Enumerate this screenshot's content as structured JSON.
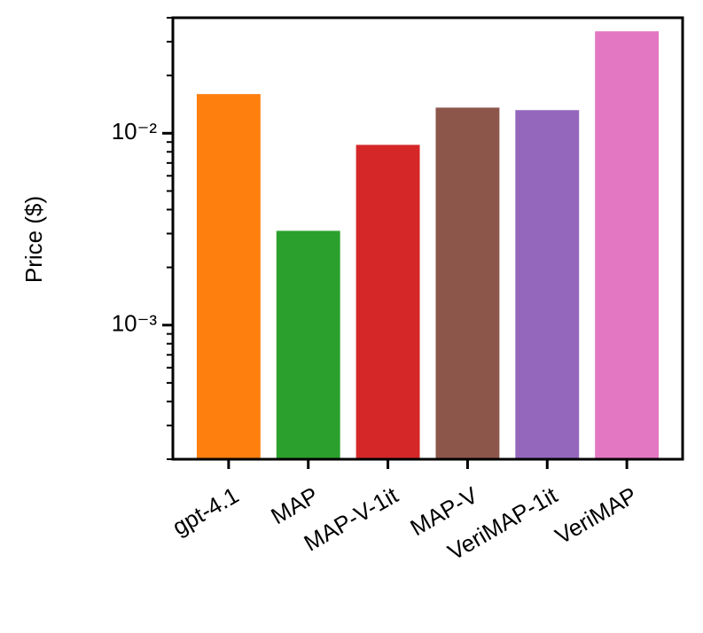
{
  "chart_data": {
    "type": "bar",
    "y_label": "Price ($)",
    "categories": [
      "gpt-4.1",
      "MAP",
      "MAP-V-1it",
      "MAP-V",
      "VeriMAP-1it",
      "VeriMAP"
    ],
    "values": [
      0.016,
      0.0031,
      0.0087,
      0.0136,
      0.0132,
      0.034
    ],
    "colors": [
      "#ff7f0e",
      "#2ca02c",
      "#d62728",
      "#8c564b",
      "#9467bd",
      "#e377c2"
    ],
    "log_scale": true,
    "ylim": [
      0.0002,
      0.04
    ],
    "yticks": [
      {
        "value": 0.001,
        "label": "10⁻³"
      },
      {
        "value": 0.01,
        "label": "10⁻²"
      }
    ],
    "minor_yticks": [
      0.0002,
      0.0003,
      0.0004,
      0.0005,
      0.0006,
      0.0007,
      0.0008,
      0.0009,
      0.002,
      0.003,
      0.004,
      0.005,
      0.006,
      0.007,
      0.008,
      0.009,
      0.02,
      0.03,
      0.04
    ]
  }
}
